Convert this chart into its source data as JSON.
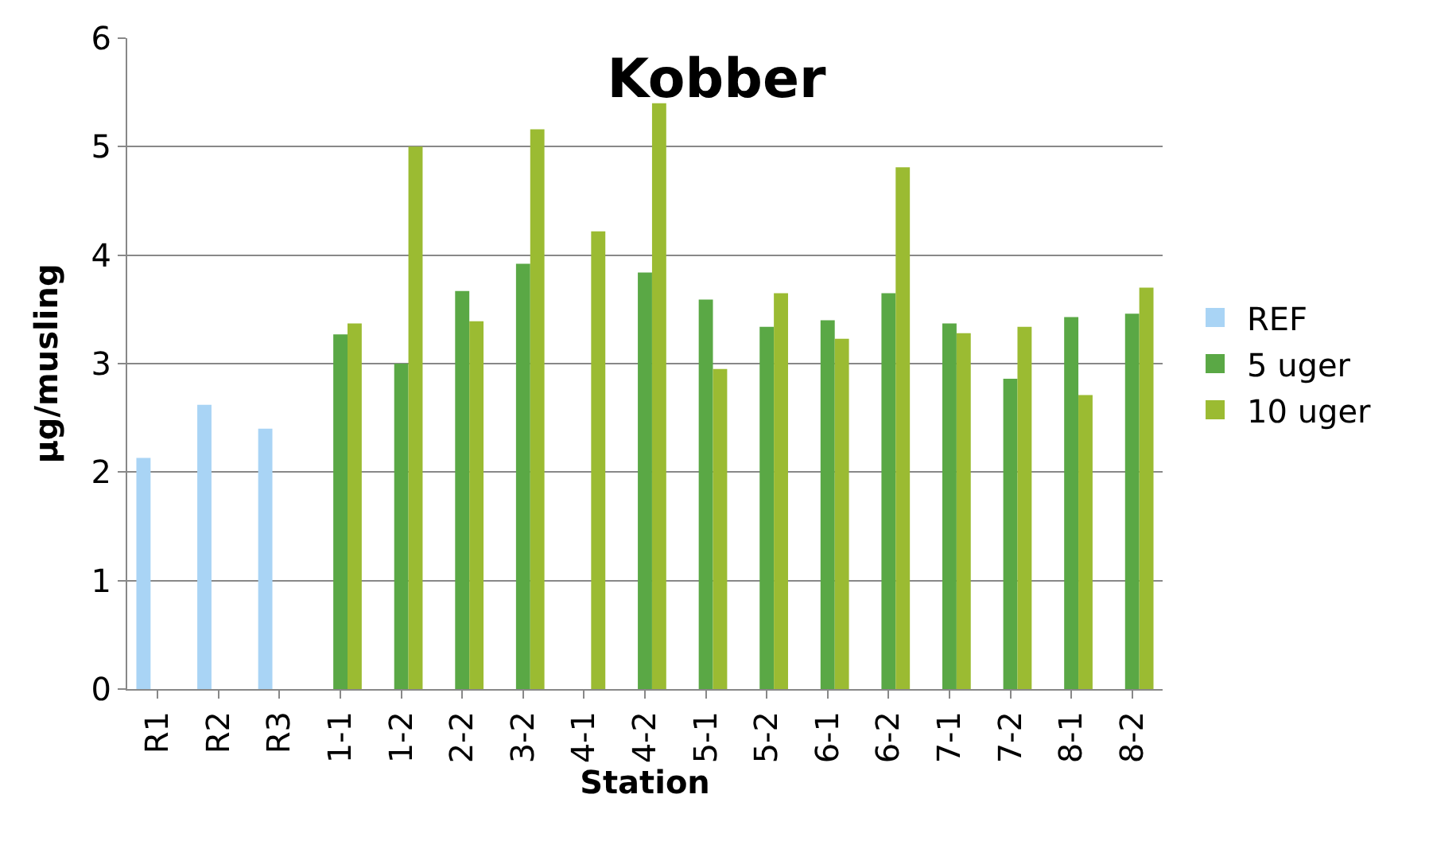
{
  "chart_data": {
    "type": "bar",
    "title": "Kobber",
    "xlabel": "Station",
    "ylabel": "µg/musling",
    "categories": [
      "R1",
      "R2",
      "R3",
      "1-1",
      "1-2",
      "2-2",
      "3-2",
      "4-1",
      "4-2",
      "5-1",
      "5-2",
      "6-1",
      "6-2",
      "7-1",
      "7-2",
      "8-1",
      "8-2"
    ],
    "series": [
      {
        "name": "REF",
        "color": "#a9d4f5",
        "values": [
          2.13,
          2.62,
          2.4,
          null,
          null,
          null,
          null,
          null,
          null,
          null,
          null,
          null,
          null,
          null,
          null,
          null,
          null
        ]
      },
      {
        "name": "5 uger",
        "color": "#5aa845",
        "values": [
          null,
          null,
          null,
          3.27,
          3.0,
          3.67,
          3.92,
          null,
          3.84,
          3.59,
          3.34,
          3.4,
          3.65,
          3.37,
          2.86,
          3.43,
          3.46
        ]
      },
      {
        "name": "10 uger",
        "color": "#9bbb32",
        "values": [
          null,
          null,
          null,
          3.37,
          5.0,
          3.39,
          5.16,
          4.22,
          5.4,
          2.95,
          3.65,
          3.23,
          4.81,
          3.28,
          3.34,
          2.71,
          3.7
        ]
      }
    ],
    "ylim": [
      0,
      6
    ],
    "yticks": [
      0,
      1,
      2,
      3,
      4,
      5,
      6
    ],
    "grid": "y",
    "legend": "right"
  }
}
